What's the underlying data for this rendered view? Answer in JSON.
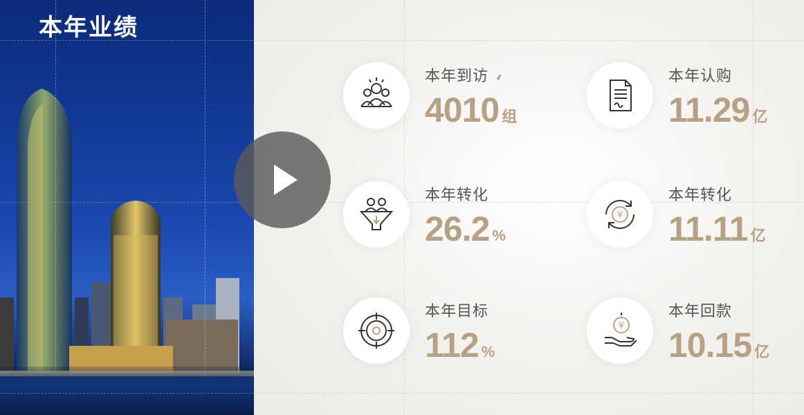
{
  "left_panel": {
    "title": "本年业绩"
  },
  "stats": [
    {
      "label": "本年到访",
      "value": "4010",
      "unit": "组",
      "icon": "visitors-group-icon"
    },
    {
      "label": "本年认购",
      "value": "11.29",
      "unit": "亿",
      "icon": "contract-document-icon"
    },
    {
      "label": "本年转化",
      "value": "26.2",
      "unit": "%",
      "icon": "conversion-funnel-icon"
    },
    {
      "label": "本年转化",
      "value": "11.11",
      "unit": "亿",
      "icon": "yuan-cycle-icon"
    },
    {
      "label": "本年目标",
      "value": "112",
      "unit": "%",
      "icon": "target-crosshair-icon"
    },
    {
      "label": "本年回款",
      "value": "10.15",
      "unit": "亿",
      "icon": "hand-yuan-coin-icon"
    }
  ],
  "colors": {
    "accent": "#b7a184",
    "label": "#555555",
    "left_panel": "#133a98"
  },
  "video_overlay": {
    "icon": "play-button-icon"
  }
}
